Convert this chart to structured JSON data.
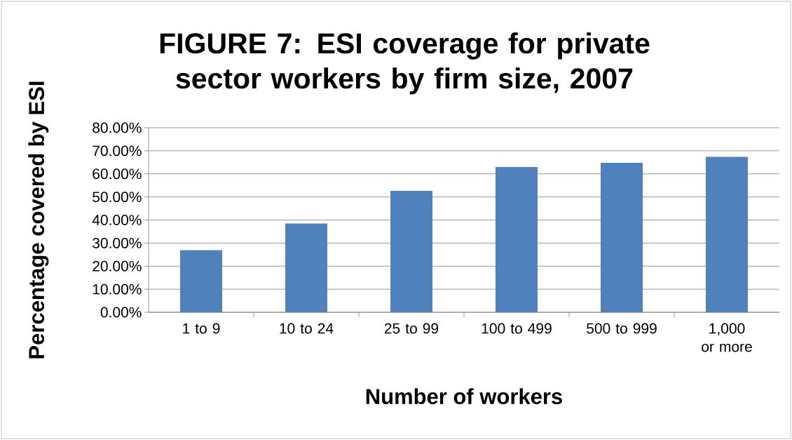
{
  "chart_data": {
    "type": "bar",
    "title": "FIGURE 7: ESI coverage for private sector workers by firm size, 2007",
    "xlabel": "Number of workers",
    "ylabel": "Percentage covered by ESI",
    "categories": [
      "1 to 9",
      "10 to 24",
      "25 to 99",
      "100 to 499",
      "500 to 999",
      "1,000 or more"
    ],
    "values": [
      26.9,
      38.5,
      52.6,
      63.0,
      64.8,
      67.4
    ],
    "color": "#4f81bd",
    "ylim": [
      0,
      80
    ],
    "yticks": [
      {
        "value": 0,
        "label": "0.00%"
      },
      {
        "value": 10,
        "label": "10.00%"
      },
      {
        "value": 20,
        "label": "20.00%"
      },
      {
        "value": 30,
        "label": "30.00%"
      },
      {
        "value": 40,
        "label": "40.00%"
      },
      {
        "value": 50,
        "label": "50.00%"
      },
      {
        "value": 60,
        "label": "60.00%"
      },
      {
        "value": 70,
        "label": "70.00%"
      },
      {
        "value": 80,
        "label": "80.00%"
      }
    ],
    "grid": "y"
  }
}
